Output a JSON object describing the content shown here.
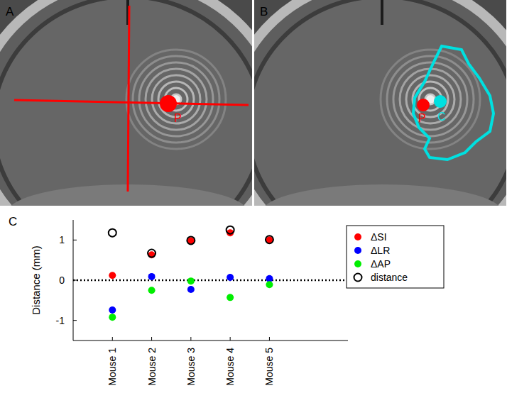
{
  "images": [
    {
      "label": "A",
      "crosshair": true,
      "points": [
        {
          "label": "P",
          "color": "#ff0000"
        }
      ]
    },
    {
      "label": "B",
      "outline": true,
      "points": [
        {
          "label": "P",
          "color": "#ff0000"
        },
        {
          "label": "C",
          "color": "#00e0e0"
        }
      ]
    }
  ],
  "chart_data": {
    "type": "scatter",
    "title": "C",
    "y_label": "Distance (mm)",
    "categories": [
      "Mouse 1",
      "Mouse 2",
      "Mouse 3",
      "Mouse 4",
      "Mouse 5"
    ],
    "ylim": [
      -1.5,
      1.5
    ],
    "yticks": [
      -1,
      0,
      1
    ],
    "reference_lines": [
      0
    ],
    "legend": "northeast",
    "series": [
      {
        "name": "ΔSI",
        "color": "#ff0000",
        "marker": "circle",
        "values": [
          0.12,
          0.63,
          0.98,
          1.18,
          1.0
        ]
      },
      {
        "name": "ΔLR",
        "color": "#0000ff",
        "marker": "circle",
        "values": [
          -0.74,
          0.09,
          -0.23,
          0.07,
          0.04
        ]
      },
      {
        "name": "ΔAP",
        "color": "#00ee00",
        "marker": "circle",
        "values": [
          -0.92,
          -0.25,
          -0.02,
          -0.43,
          -0.11
        ]
      },
      {
        "name": "distance",
        "color": "#000000",
        "marker": "open_circle",
        "values": [
          1.18,
          0.67,
          0.99,
          1.25,
          1.01
        ]
      }
    ]
  }
}
